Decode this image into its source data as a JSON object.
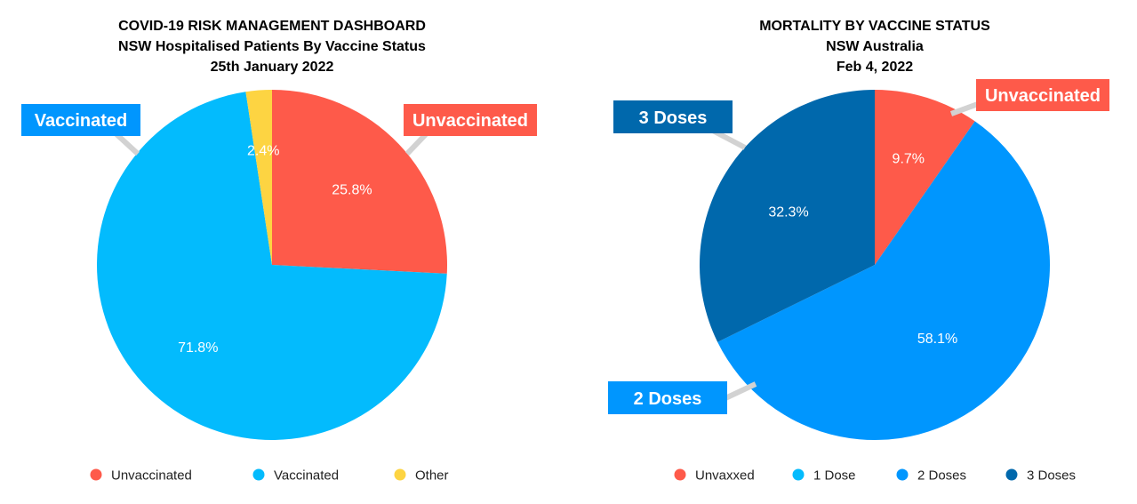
{
  "chart_data": [
    {
      "type": "pie",
      "title": [
        "COVID-19 RISK MANAGEMENT DASHBOARD",
        "NSW Hospitalised Patients By Vaccine Status",
        "25th January 2022"
      ],
      "slices": [
        {
          "label": "Unvaccinated",
          "value": 25.8,
          "value_label": "25.8%",
          "color": "#fe5a4a"
        },
        {
          "label": "Vaccinated",
          "value": 71.8,
          "value_label": "71.8%",
          "color": "#03bbfd"
        },
        {
          "label": "Other",
          "value": 2.4,
          "value_label": "2.4%",
          "color": "#fdd442"
        }
      ],
      "callouts": [
        {
          "text": "Vaccinated",
          "color": "#0096fe"
        },
        {
          "text": "Unvaccinated",
          "color": "#fe5a4a"
        }
      ],
      "legend": [
        {
          "label": "Unvaccinated",
          "color": "#fe5a4a"
        },
        {
          "label": "Vaccinated",
          "color": "#03bbfd"
        },
        {
          "label": "Other",
          "color": "#fdd442"
        }
      ],
      "legend_position": "bottom"
    },
    {
      "type": "pie",
      "title": [
        "MORTALITY BY VACCINE STATUS",
        "NSW Australia",
        "Feb 4, 2022"
      ],
      "slices": [
        {
          "label": "Unvaxxed",
          "value": 9.7,
          "value_label": "9.7%",
          "color": "#fe5a4a"
        },
        {
          "label": "2 Doses",
          "value": 58.1,
          "value_label": "58.1%",
          "color": "#0096fe"
        },
        {
          "label": "3 Doses",
          "value": 32.3,
          "value_label": "32.3%",
          "color": "#0068ac"
        }
      ],
      "callouts": [
        {
          "text": "3 Doses",
          "color": "#0068ac"
        },
        {
          "text": "Unvaccinated",
          "color": "#fe5a4a"
        },
        {
          "text": "2 Doses",
          "color": "#0096fe"
        }
      ],
      "legend": [
        {
          "label": "Unvaxxed",
          "color": "#fe5a4a"
        },
        {
          "label": "1 Dose",
          "color": "#03bbfd"
        },
        {
          "label": "2 Doses",
          "color": "#0096fe"
        },
        {
          "label": "3 Doses",
          "color": "#0068ac"
        }
      ],
      "legend_position": "bottom"
    }
  ]
}
